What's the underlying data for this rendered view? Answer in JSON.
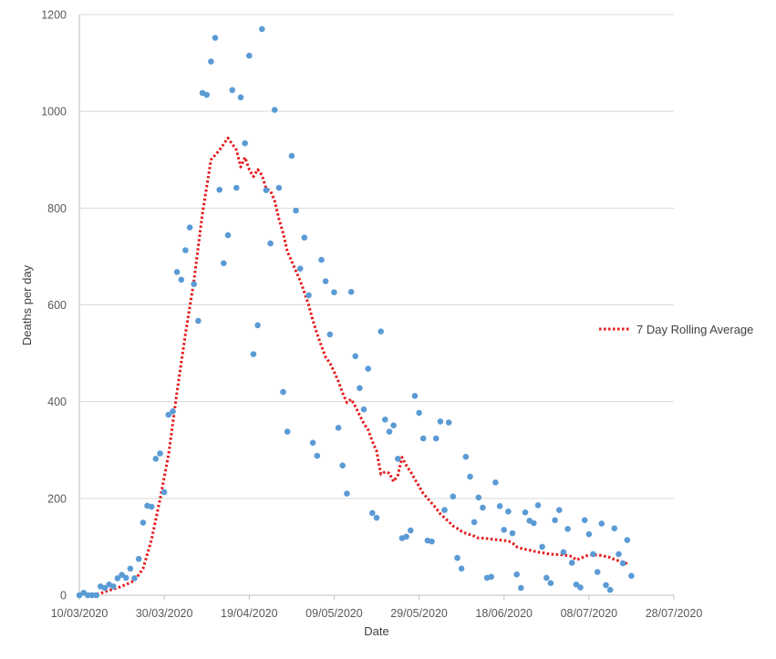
{
  "chart_data": {
    "type": "scatter",
    "title": "",
    "xlabel": "Date",
    "ylabel": "Deaths per day",
    "x_tick_labels": [
      "10/03/2020",
      "30/03/2020",
      "19/04/2020",
      "09/05/2020",
      "29/05/2020",
      "18/06/2020",
      "08/07/2020",
      "28/07/2020"
    ],
    "xlim": [
      "2020-03-10",
      "2020-07-28"
    ],
    "ylim": [
      0,
      1200
    ],
    "y_ticks": [
      0,
      200,
      400,
      600,
      800,
      1000,
      1200
    ],
    "grid": "horizontal",
    "legend_position": "right",
    "series": [
      {
        "type": "scatter",
        "color": "#5B9BD5",
        "points": [
          [
            "2020-03-10",
            0
          ],
          [
            "2020-03-11",
            5
          ],
          [
            "2020-03-12",
            0
          ],
          [
            "2020-03-13",
            0
          ],
          [
            "2020-03-14",
            0
          ],
          [
            "2020-03-15",
            18
          ],
          [
            "2020-03-16",
            15
          ],
          [
            "2020-03-17",
            22
          ],
          [
            "2020-03-18",
            18
          ],
          [
            "2020-03-19",
            35
          ],
          [
            "2020-03-20",
            42
          ],
          [
            "2020-03-21",
            36
          ],
          [
            "2020-03-22",
            55
          ],
          [
            "2020-03-23",
            35
          ],
          [
            "2020-03-24",
            75
          ],
          [
            "2020-03-25",
            150
          ],
          [
            "2020-03-26",
            185
          ],
          [
            "2020-03-27",
            183
          ],
          [
            "2020-03-28",
            282
          ],
          [
            "2020-03-29",
            293
          ],
          [
            "2020-03-30",
            213
          ],
          [
            "2020-03-31",
            373
          ],
          [
            "2020-04-01",
            380
          ],
          [
            "2020-04-02",
            668
          ],
          [
            "2020-04-03",
            652
          ],
          [
            "2020-04-04",
            713
          ],
          [
            "2020-04-05",
            760
          ],
          [
            "2020-04-06",
            643
          ],
          [
            "2020-04-07",
            567
          ],
          [
            "2020-04-08",
            1038
          ],
          [
            "2020-04-09",
            1034
          ],
          [
            "2020-04-10",
            1103
          ],
          [
            "2020-04-11",
            1152
          ],
          [
            "2020-04-12",
            838
          ],
          [
            "2020-04-13",
            686
          ],
          [
            "2020-04-14",
            744
          ],
          [
            "2020-04-15",
            1044
          ],
          [
            "2020-04-16",
            842
          ],
          [
            "2020-04-17",
            1029
          ],
          [
            "2020-04-18",
            934
          ],
          [
            "2020-04-19",
            1115
          ],
          [
            "2020-04-20",
            498
          ],
          [
            "2020-04-21",
            558
          ],
          [
            "2020-04-22",
            1170
          ],
          [
            "2020-04-23",
            837
          ],
          [
            "2020-04-24",
            727
          ],
          [
            "2020-04-25",
            1003
          ],
          [
            "2020-04-26",
            842
          ],
          [
            "2020-04-27",
            420
          ],
          [
            "2020-04-28",
            338
          ],
          [
            "2020-04-29",
            908
          ],
          [
            "2020-04-30",
            795
          ],
          [
            "2020-05-01",
            675
          ],
          [
            "2020-05-02",
            739
          ],
          [
            "2020-05-03",
            620
          ],
          [
            "2020-05-04",
            315
          ],
          [
            "2020-05-05",
            288
          ],
          [
            "2020-05-06",
            693
          ],
          [
            "2020-05-07",
            649
          ],
          [
            "2020-05-08",
            539
          ],
          [
            "2020-05-09",
            626
          ],
          [
            "2020-05-10",
            346
          ],
          [
            "2020-05-11",
            268
          ],
          [
            "2020-05-12",
            210
          ],
          [
            "2020-05-13",
            627
          ],
          [
            "2020-05-14",
            494
          ],
          [
            "2020-05-15",
            428
          ],
          [
            "2020-05-16",
            384
          ],
          [
            "2020-05-17",
            468
          ],
          [
            "2020-05-18",
            170
          ],
          [
            "2020-05-19",
            160
          ],
          [
            "2020-05-20",
            545
          ],
          [
            "2020-05-21",
            363
          ],
          [
            "2020-05-22",
            338
          ],
          [
            "2020-05-23",
            351
          ],
          [
            "2020-05-24",
            282
          ],
          [
            "2020-05-25",
            118
          ],
          [
            "2020-05-26",
            121
          ],
          [
            "2020-05-27",
            134
          ],
          [
            "2020-05-28",
            412
          ],
          [
            "2020-05-29",
            377
          ],
          [
            "2020-05-30",
            324
          ],
          [
            "2020-05-31",
            113
          ],
          [
            "2020-06-01",
            111
          ],
          [
            "2020-06-02",
            324
          ],
          [
            "2020-06-03",
            359
          ],
          [
            "2020-06-04",
            176
          ],
          [
            "2020-06-05",
            357
          ],
          [
            "2020-06-06",
            204
          ],
          [
            "2020-06-07",
            77
          ],
          [
            "2020-06-08",
            55
          ],
          [
            "2020-06-09",
            286
          ],
          [
            "2020-06-10",
            245
          ],
          [
            "2020-06-11",
            151
          ],
          [
            "2020-06-12",
            202
          ],
          [
            "2020-06-13",
            181
          ],
          [
            "2020-06-14",
            36
          ],
          [
            "2020-06-15",
            38
          ],
          [
            "2020-06-16",
            233
          ],
          [
            "2020-06-17",
            184
          ],
          [
            "2020-06-18",
            135
          ],
          [
            "2020-06-19",
            173
          ],
          [
            "2020-06-20",
            128
          ],
          [
            "2020-06-21",
            43
          ],
          [
            "2020-06-22",
            15
          ],
          [
            "2020-06-23",
            171
          ],
          [
            "2020-06-24",
            154
          ],
          [
            "2020-06-25",
            149
          ],
          [
            "2020-06-26",
            186
          ],
          [
            "2020-06-27",
            100
          ],
          [
            "2020-06-28",
            36
          ],
          [
            "2020-06-29",
            25
          ],
          [
            "2020-06-30",
            155
          ],
          [
            "2020-07-01",
            176
          ],
          [
            "2020-07-02",
            89
          ],
          [
            "2020-07-03",
            137
          ],
          [
            "2020-07-04",
            67
          ],
          [
            "2020-07-05",
            22
          ],
          [
            "2020-07-06",
            16
          ],
          [
            "2020-07-07",
            155
          ],
          [
            "2020-07-08",
            126
          ],
          [
            "2020-07-09",
            85
          ],
          [
            "2020-07-10",
            48
          ],
          [
            "2020-07-11",
            148
          ],
          [
            "2020-07-12",
            21
          ],
          [
            "2020-07-13",
            11
          ],
          [
            "2020-07-14",
            138
          ],
          [
            "2020-07-15",
            85
          ],
          [
            "2020-07-16",
            66
          ],
          [
            "2020-07-17",
            114
          ],
          [
            "2020-07-18",
            40
          ]
        ]
      },
      {
        "type": "line",
        "name": "7 Day Rolling Average",
        "color": "#E41A1C",
        "style": "dotted",
        "points": [
          [
            "2020-03-13",
            1
          ],
          [
            "2020-03-15",
            4
          ],
          [
            "2020-03-17",
            10
          ],
          [
            "2020-03-19",
            15
          ],
          [
            "2020-03-21",
            22
          ],
          [
            "2020-03-23",
            30
          ],
          [
            "2020-03-25",
            55
          ],
          [
            "2020-03-27",
            115
          ],
          [
            "2020-03-29",
            198
          ],
          [
            "2020-03-31",
            290
          ],
          [
            "2020-04-02",
            420
          ],
          [
            "2020-04-04",
            540
          ],
          [
            "2020-04-06",
            650
          ],
          [
            "2020-04-08",
            790
          ],
          [
            "2020-04-10",
            900
          ],
          [
            "2020-04-12",
            920
          ],
          [
            "2020-04-14",
            945
          ],
          [
            "2020-04-16",
            920
          ],
          [
            "2020-04-17",
            885
          ],
          [
            "2020-04-18",
            905
          ],
          [
            "2020-04-19",
            880
          ],
          [
            "2020-04-20",
            865
          ],
          [
            "2020-04-21",
            880
          ],
          [
            "2020-04-22",
            868
          ],
          [
            "2020-04-23",
            840
          ],
          [
            "2020-04-24",
            836
          ],
          [
            "2020-04-25",
            815
          ],
          [
            "2020-04-26",
            778
          ],
          [
            "2020-04-27",
            748
          ],
          [
            "2020-04-28",
            710
          ],
          [
            "2020-04-29",
            690
          ],
          [
            "2020-04-30",
            670
          ],
          [
            "2020-05-01",
            650
          ],
          [
            "2020-05-02",
            626
          ],
          [
            "2020-05-03",
            600
          ],
          [
            "2020-05-04",
            568
          ],
          [
            "2020-05-05",
            540
          ],
          [
            "2020-05-06",
            515
          ],
          [
            "2020-05-07",
            492
          ],
          [
            "2020-05-08",
            480
          ],
          [
            "2020-05-09",
            462
          ],
          [
            "2020-05-10",
            442
          ],
          [
            "2020-05-11",
            418
          ],
          [
            "2020-05-12",
            398
          ],
          [
            "2020-05-13",
            405
          ],
          [
            "2020-05-14",
            390
          ],
          [
            "2020-05-15",
            372
          ],
          [
            "2020-05-16",
            355
          ],
          [
            "2020-05-17",
            342
          ],
          [
            "2020-05-18",
            318
          ],
          [
            "2020-05-19",
            298
          ],
          [
            "2020-05-20",
            250
          ],
          [
            "2020-05-21",
            255
          ],
          [
            "2020-05-22",
            252
          ],
          [
            "2020-05-23",
            235
          ],
          [
            "2020-05-24",
            248
          ],
          [
            "2020-05-25",
            285
          ],
          [
            "2020-05-26",
            268
          ],
          [
            "2020-05-27",
            255
          ],
          [
            "2020-05-28",
            240
          ],
          [
            "2020-05-29",
            225
          ],
          [
            "2020-05-30",
            210
          ],
          [
            "2020-05-31",
            200
          ],
          [
            "2020-06-01",
            190
          ],
          [
            "2020-06-02",
            180
          ],
          [
            "2020-06-03",
            168
          ],
          [
            "2020-06-04",
            160
          ],
          [
            "2020-06-05",
            152
          ],
          [
            "2020-06-06",
            143
          ],
          [
            "2020-06-07",
            138
          ],
          [
            "2020-06-08",
            132
          ],
          [
            "2020-06-09",
            128
          ],
          [
            "2020-06-10",
            125
          ],
          [
            "2020-06-11",
            122
          ],
          [
            "2020-06-12",
            118
          ],
          [
            "2020-06-13",
            118
          ],
          [
            "2020-06-14",
            117
          ],
          [
            "2020-06-15",
            116
          ],
          [
            "2020-06-16",
            115
          ],
          [
            "2020-06-17",
            114
          ],
          [
            "2020-06-18",
            113
          ],
          [
            "2020-06-19",
            112
          ],
          [
            "2020-06-20",
            108
          ],
          [
            "2020-06-21",
            100
          ],
          [
            "2020-06-22",
            97
          ],
          [
            "2020-06-23",
            95
          ],
          [
            "2020-06-24",
            93
          ],
          [
            "2020-06-25",
            91
          ],
          [
            "2020-06-26",
            89
          ],
          [
            "2020-06-27",
            88
          ],
          [
            "2020-06-28",
            86
          ],
          [
            "2020-06-29",
            85
          ],
          [
            "2020-06-30",
            84
          ],
          [
            "2020-07-01",
            84
          ],
          [
            "2020-07-02",
            83
          ],
          [
            "2020-07-03",
            82
          ],
          [
            "2020-07-04",
            80
          ],
          [
            "2020-07-05",
            73
          ],
          [
            "2020-07-06",
            76
          ],
          [
            "2020-07-07",
            80
          ],
          [
            "2020-07-08",
            83
          ],
          [
            "2020-07-09",
            84
          ],
          [
            "2020-07-10",
            83
          ],
          [
            "2020-07-11",
            82
          ],
          [
            "2020-07-12",
            80
          ],
          [
            "2020-07-13",
            78
          ],
          [
            "2020-07-14",
            74
          ],
          [
            "2020-07-15",
            71
          ],
          [
            "2020-07-16",
            69
          ],
          [
            "2020-07-17",
            65
          ]
        ]
      }
    ]
  }
}
